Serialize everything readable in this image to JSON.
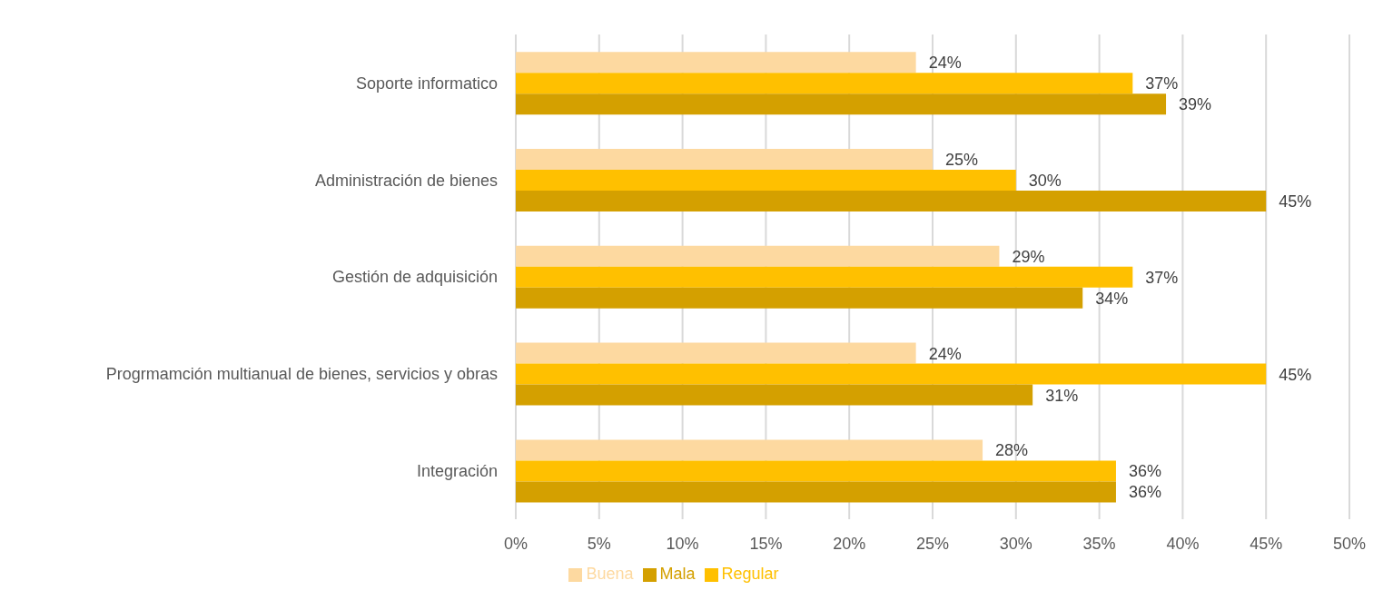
{
  "chart_data": {
    "type": "bar",
    "orientation": "horizontal",
    "categories": [
      "Soporte informatico",
      "Administración de bienes",
      "Gestión de adquisición",
      "Progrmamción multianual de bienes, servicios y obras",
      "Integración"
    ],
    "series": [
      {
        "name": "Buena",
        "color": "#fdd9a0",
        "values": [
          24,
          25,
          29,
          24,
          28
        ],
        "value_labels": [
          "24%",
          "25%",
          "29%",
          "24%",
          "28%"
        ]
      },
      {
        "name": "Regular",
        "color": "#ffc000",
        "values": [
          37,
          30,
          37,
          45,
          36
        ],
        "value_labels": [
          "37%",
          "30%",
          "37%",
          "45%",
          "36%"
        ]
      },
      {
        "name": "Mala",
        "color": "#d4a000",
        "values": [
          39,
          45,
          34,
          31,
          36
        ],
        "value_labels": [
          "39%",
          "45%",
          "34%",
          "31%",
          "36%"
        ]
      }
    ],
    "xlim": [
      0,
      50
    ],
    "xticks": [
      {
        "value": 0,
        "label": "0%"
      },
      {
        "value": 5,
        "label": "5%"
      },
      {
        "value": 10,
        "label": "10%"
      },
      {
        "value": 15,
        "label": "15%"
      },
      {
        "value": 20,
        "label": "20%"
      },
      {
        "value": 25,
        "label": "25%"
      },
      {
        "value": 30,
        "label": "30%"
      },
      {
        "value": 35,
        "label": "35%"
      },
      {
        "value": 40,
        "label": "40%"
      },
      {
        "value": 45,
        "label": "45%"
      },
      {
        "value": 50,
        "label": "50%"
      }
    ],
    "grid": "x",
    "legend": "bottom"
  }
}
